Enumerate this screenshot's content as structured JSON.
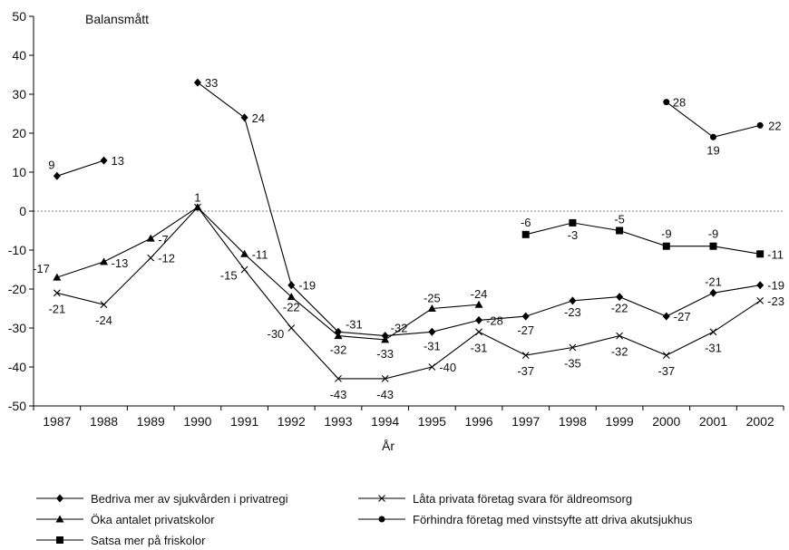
{
  "chart_data": {
    "type": "line",
    "ylabel": "Balansmått",
    "xlabel": "År",
    "ylim": [
      -50,
      50
    ],
    "yticks": [
      -50,
      -40,
      -30,
      -20,
      -10,
      0,
      10,
      20,
      30,
      40,
      50
    ],
    "x": [
      1987,
      1988,
      1989,
      1990,
      1991,
      1992,
      1993,
      1994,
      1995,
      1996,
      1997,
      1998,
      1999,
      2000,
      2001,
      2002
    ],
    "zero_line": "dashed",
    "grid": false,
    "legend_position": "bottom",
    "series": [
      {
        "name": "Bedriva mer av sjukvården i privatregi",
        "marker": "diamond",
        "values": [
          9,
          13,
          null,
          33,
          24,
          -19,
          -31,
          -32,
          -31,
          -28,
          -27,
          -23,
          -22,
          -27,
          -21,
          -19
        ],
        "labels": [
          "9",
          "13",
          null,
          "33",
          "24",
          "-19",
          "-31",
          "-32",
          "-31",
          "-28",
          "-27",
          "-23",
          "-22",
          "-27",
          "-21",
          "-19"
        ]
      },
      {
        "name": "Öka antalet privatskolor",
        "marker": "triangle",
        "values": [
          -17,
          -13,
          -7,
          1,
          -11,
          -22,
          -32,
          -33,
          -25,
          -24,
          null,
          null,
          null,
          null,
          null,
          null
        ],
        "labels": [
          "-17",
          "-13",
          "-7",
          "1",
          "-11",
          "-22",
          "-32",
          "-33",
          "-25",
          "-24",
          null,
          null,
          null,
          null,
          null,
          null
        ]
      },
      {
        "name": "Satsa mer på friskolor",
        "marker": "square",
        "values": [
          null,
          null,
          null,
          null,
          null,
          null,
          null,
          null,
          null,
          null,
          -6,
          -3,
          -5,
          -9,
          -9,
          -11
        ],
        "labels": [
          null,
          null,
          null,
          null,
          null,
          null,
          null,
          null,
          null,
          null,
          "-6",
          "-3",
          "-5",
          "-9",
          "-9",
          "-11"
        ]
      },
      {
        "name": "Låta privata företag svara för äldreomsorg",
        "marker": "x",
        "values": [
          -21,
          -24,
          -12,
          1,
          -15,
          -30,
          -43,
          -43,
          -40,
          -31,
          -37,
          -35,
          -32,
          -37,
          -31,
          -23
        ],
        "labels": [
          "-21",
          "-24",
          "-12",
          null,
          "-15",
          "-30",
          "-43",
          "-43",
          "-40",
          "-31",
          "-37",
          "-35",
          "-32",
          "-37",
          "-31",
          "-23"
        ]
      },
      {
        "name": "Förhindra företag med vinstsyfte att driva akutsjukhus",
        "marker": "circle",
        "values": [
          null,
          null,
          null,
          null,
          null,
          null,
          null,
          null,
          null,
          null,
          null,
          null,
          null,
          28,
          19,
          22
        ],
        "labels": [
          null,
          null,
          null,
          null,
          null,
          null,
          null,
          null,
          null,
          null,
          null,
          null,
          null,
          "28",
          "19",
          "22"
        ]
      }
    ]
  }
}
